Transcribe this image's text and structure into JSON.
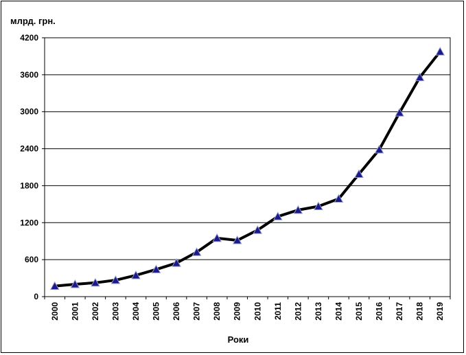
{
  "chart_data": {
    "type": "line",
    "ylabel": "млрд. грн.",
    "xlabel": "Роки",
    "x": [
      "2000",
      "2001",
      "2002",
      "2003",
      "2004",
      "2005",
      "2006",
      "2007",
      "2008",
      "2009",
      "2010",
      "2011",
      "2012",
      "2013",
      "2014",
      "2015",
      "2016",
      "2017",
      "2018",
      "2019"
    ],
    "series": [
      {
        "values": [
          171,
          201,
          225,
          267,
          346,
          441,
          545,
          721,
          949,
          913,
          1079,
          1300,
          1405,
          1465,
          1587,
          1989,
          2385,
          2984,
          3558,
          3975
        ]
      }
    ],
    "ylim": [
      0,
      4200
    ],
    "yticks": [
      "0",
      "600",
      "1200",
      "1800",
      "2400",
      "3000",
      "3600",
      "4200"
    ],
    "grid": true,
    "colors": {
      "line": "#000000",
      "marker": "#1a1a8c",
      "grid": "#000000"
    }
  }
}
